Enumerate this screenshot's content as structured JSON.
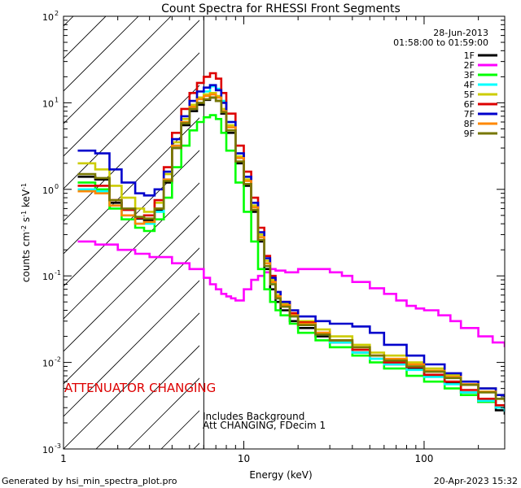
{
  "chart_data": {
    "type": "line",
    "title": "Count Spectra for RHESSI Front Segments",
    "xlabel": "Energy (keV)",
    "ylabel_html": "counts cm<tspan baseline-shift=\"super\" font-size=\"8\">-2</tspan> s<tspan baseline-shift=\"super\" font-size=\"8\">-1</tspan> keV<tspan baseline-shift=\"super\" font-size=\"8\">-1</tspan>",
    "xscale": "log",
    "yscale": "log",
    "xlim": [
      1,
      280
    ],
    "ylim": [
      0.001,
      100
    ],
    "x_ticks": [
      {
        "v": 1,
        "label": "1"
      },
      {
        "v": 10,
        "label": "10"
      },
      {
        "v": 100,
        "label": "100"
      }
    ],
    "y_ticks": [
      {
        "v": 0.001,
        "base": "10",
        "exp": "-3"
      },
      {
        "v": 0.01,
        "base": "10",
        "exp": "-2"
      },
      {
        "v": 0.1,
        "base": "10",
        "exp": "-1"
      },
      {
        "v": 1,
        "base": "10",
        "exp": "0"
      },
      {
        "v": 10,
        "base": "10",
        "exp": "1"
      },
      {
        "v": 100,
        "base": "10",
        "exp": "2"
      }
    ],
    "attenuator_edge_kev": 6,
    "legend_position": "top-right",
    "series": [
      {
        "name": "1F",
        "color": "#000000",
        "energy": [
          1.2,
          1.5,
          1.8,
          2.1,
          2.5,
          2.8,
          3.2,
          3.6,
          4.0,
          4.5,
          5.0,
          5.5,
          6.0,
          6.5,
          7.0,
          7.5,
          8.0,
          9.0,
          10.0,
          11.0,
          12.0,
          13.0,
          14.0,
          15.0,
          16.0,
          18.0,
          20.0,
          25.0,
          30.0,
          40.0,
          50.0,
          60.0,
          80.0,
          100.0,
          130.0,
          160.0,
          200.0,
          250.0,
          280.0
        ],
        "flux": [
          1.4,
          1.3,
          0.7,
          0.58,
          0.46,
          0.44,
          0.58,
          1.2,
          3.0,
          5.5,
          8.0,
          9.5,
          10.8,
          11.5,
          10.5,
          7.5,
          4.5,
          2.0,
          1.1,
          0.55,
          0.25,
          0.12,
          0.07,
          0.05,
          0.04,
          0.03,
          0.025,
          0.02,
          0.017,
          0.013,
          0.011,
          0.0095,
          0.0085,
          0.007,
          0.0058,
          0.0045,
          0.0035,
          0.0028,
          0.0025
        ]
      },
      {
        "name": "2F",
        "color": "#ff00ff",
        "energy": [
          1.2,
          1.5,
          2.0,
          2.5,
          3.0,
          4.0,
          5.0,
          6.0,
          6.5,
          7.0,
          7.5,
          8.0,
          8.5,
          9.0,
          10.0,
          11.0,
          12.0,
          13.0,
          14.0,
          15.0,
          17.0,
          20.0,
          25.0,
          30.0,
          35.0,
          40.0,
          50.0,
          60.0,
          70.0,
          80.0,
          90.0,
          100.0,
          120.0,
          140.0,
          160.0,
          200.0,
          240.0,
          280.0
        ],
        "flux": [
          0.25,
          0.23,
          0.2,
          0.18,
          0.165,
          0.14,
          0.12,
          0.095,
          0.08,
          0.07,
          0.062,
          0.058,
          0.055,
          0.052,
          0.07,
          0.09,
          0.1,
          0.11,
          0.12,
          0.115,
          0.11,
          0.12,
          0.12,
          0.11,
          0.1,
          0.085,
          0.072,
          0.062,
          0.052,
          0.045,
          0.042,
          0.04,
          0.035,
          0.03,
          0.025,
          0.02,
          0.017,
          0.015
        ]
      },
      {
        "name": "3F",
        "color": "#00ff00",
        "energy": [
          1.2,
          1.5,
          1.8,
          2.1,
          2.5,
          2.8,
          3.2,
          3.6,
          4.0,
          4.5,
          5.0,
          5.5,
          6.0,
          6.5,
          7.0,
          7.5,
          8.0,
          9.0,
          10.0,
          11.0,
          12.0,
          13.0,
          14.0,
          15.0,
          16.0,
          18.0,
          20.0,
          25.0,
          30.0,
          40.0,
          50.0,
          60.0,
          80.0,
          100.0,
          130.0,
          160.0,
          200.0,
          250.0,
          280.0
        ],
        "flux": [
          1.2,
          1.0,
          0.6,
          0.45,
          0.36,
          0.33,
          0.45,
          0.8,
          1.8,
          3.2,
          4.8,
          6.0,
          6.8,
          7.2,
          6.5,
          4.5,
          2.8,
          1.2,
          0.55,
          0.25,
          0.12,
          0.07,
          0.05,
          0.04,
          0.035,
          0.028,
          0.022,
          0.018,
          0.015,
          0.012,
          0.01,
          0.0085,
          0.007,
          0.006,
          0.005,
          0.0042,
          0.0035,
          0.003,
          0.0028
        ]
      },
      {
        "name": "4F",
        "color": "#00ffff",
        "energy": [
          1.2,
          1.5,
          1.8,
          2.1,
          2.5,
          2.8,
          3.2,
          3.6,
          4.0,
          4.5,
          5.0,
          5.5,
          6.0,
          6.5,
          7.0,
          7.5,
          8.0,
          9.0,
          10.0,
          11.0,
          12.0,
          13.0,
          14.0,
          15.0,
          16.0,
          18.0,
          20.0,
          25.0,
          30.0,
          40.0,
          50.0,
          60.0,
          80.0,
          100.0,
          130.0,
          160.0,
          200.0,
          250.0,
          280.0
        ],
        "flux": [
          1.0,
          0.95,
          0.65,
          0.5,
          0.4,
          0.4,
          0.55,
          1.3,
          3.2,
          6.0,
          9.0,
          11.5,
          13.5,
          15.5,
          14.5,
          10.5,
          6.0,
          2.6,
          1.4,
          0.7,
          0.3,
          0.14,
          0.08,
          0.055,
          0.045,
          0.034,
          0.027,
          0.021,
          0.017,
          0.013,
          0.011,
          0.0095,
          0.0082,
          0.0068,
          0.0056,
          0.0045,
          0.0036,
          0.003,
          0.0027
        ]
      },
      {
        "name": "5F",
        "color": "#cccc00",
        "energy": [
          1.2,
          1.5,
          1.8,
          2.1,
          2.5,
          2.8,
          3.2,
          3.6,
          4.0,
          4.5,
          5.0,
          5.5,
          6.0,
          6.5,
          7.0,
          7.5,
          8.0,
          9.0,
          10.0,
          11.0,
          12.0,
          13.0,
          14.0,
          15.0,
          16.0,
          18.0,
          20.0,
          25.0,
          30.0,
          40.0,
          50.0,
          60.0,
          80.0,
          100.0,
          130.0,
          160.0,
          200.0,
          250.0,
          280.0
        ],
        "flux": [
          2.0,
          1.7,
          1.1,
          0.8,
          0.6,
          0.55,
          0.7,
          1.5,
          3.5,
          6.5,
          9.5,
          11.5,
          12.5,
          13.0,
          12.0,
          8.5,
          5.5,
          2.4,
          1.3,
          0.65,
          0.3,
          0.15,
          0.09,
          0.06,
          0.048,
          0.037,
          0.03,
          0.024,
          0.02,
          0.016,
          0.013,
          0.012,
          0.01,
          0.0085,
          0.0072,
          0.006,
          0.005,
          0.0042,
          0.004
        ]
      },
      {
        "name": "6F",
        "color": "#dd0000",
        "energy": [
          1.2,
          1.5,
          1.8,
          2.1,
          2.5,
          2.8,
          3.2,
          3.6,
          4.0,
          4.5,
          5.0,
          5.5,
          6.0,
          6.5,
          7.0,
          7.5,
          8.0,
          9.0,
          10.0,
          11.0,
          12.0,
          13.0,
          14.0,
          15.0,
          16.0,
          18.0,
          20.0,
          25.0,
          30.0,
          40.0,
          50.0,
          60.0,
          80.0,
          100.0,
          130.0,
          160.0,
          200.0,
          250.0,
          280.0
        ],
        "flux": [
          1.1,
          1.1,
          0.75,
          0.58,
          0.47,
          0.5,
          0.75,
          1.8,
          4.5,
          8.5,
          13.0,
          17.0,
          20.0,
          22.0,
          19.0,
          13.0,
          7.5,
          3.2,
          1.6,
          0.8,
          0.36,
          0.17,
          0.1,
          0.065,
          0.05,
          0.037,
          0.029,
          0.022,
          0.018,
          0.014,
          0.012,
          0.01,
          0.0088,
          0.0072,
          0.006,
          0.0048,
          0.0038,
          0.0032,
          0.003
        ]
      },
      {
        "name": "7F",
        "color": "#0000cc",
        "energy": [
          1.2,
          1.5,
          1.8,
          2.1,
          2.5,
          2.8,
          3.2,
          3.6,
          4.0,
          4.5,
          5.0,
          5.5,
          6.0,
          6.5,
          7.0,
          7.5,
          8.0,
          9.0,
          10.0,
          11.0,
          12.0,
          13.0,
          14.0,
          15.0,
          16.0,
          18.0,
          20.0,
          25.0,
          30.0,
          40.0,
          50.0,
          60.0,
          80.0,
          100.0,
          130.0,
          160.0,
          200.0,
          250.0,
          280.0
        ],
        "flux": [
          2.8,
          2.6,
          1.7,
          1.2,
          0.9,
          0.85,
          1.0,
          1.6,
          3.8,
          7.0,
          10.5,
          13.5,
          15.0,
          16.0,
          14.0,
          10.0,
          6.0,
          2.6,
          1.4,
          0.7,
          0.32,
          0.16,
          0.095,
          0.065,
          0.05,
          0.04,
          0.034,
          0.03,
          0.028,
          0.026,
          0.022,
          0.016,
          0.012,
          0.0095,
          0.0075,
          0.006,
          0.005,
          0.0042,
          0.004
        ]
      },
      {
        "name": "8F",
        "color": "#ff8800",
        "energy": [
          1.2,
          1.5,
          1.8,
          2.1,
          2.5,
          2.8,
          3.2,
          3.6,
          4.0,
          4.5,
          5.0,
          5.5,
          6.0,
          6.5,
          7.0,
          7.5,
          8.0,
          9.0,
          10.0,
          11.0,
          12.0,
          13.0,
          14.0,
          15.0,
          16.0,
          18.0,
          20.0,
          25.0,
          30.0,
          40.0,
          50.0,
          60.0,
          80.0,
          100.0,
          130.0,
          160.0,
          200.0,
          250.0,
          280.0
        ],
        "flux": [
          0.95,
          0.9,
          0.65,
          0.5,
          0.4,
          0.42,
          0.6,
          1.3,
          3.2,
          6.0,
          9.0,
          11.0,
          12.0,
          12.5,
          11.5,
          8.0,
          5.2,
          2.3,
          1.25,
          0.62,
          0.28,
          0.14,
          0.085,
          0.058,
          0.046,
          0.035,
          0.028,
          0.022,
          0.018,
          0.015,
          0.012,
          0.011,
          0.0095,
          0.008,
          0.0068,
          0.0056,
          0.0046,
          0.0038,
          0.0035
        ]
      },
      {
        "name": "9F",
        "color": "#777700",
        "energy": [
          1.2,
          1.5,
          1.8,
          2.1,
          2.5,
          2.8,
          3.2,
          3.6,
          4.0,
          4.5,
          5.0,
          5.5,
          6.0,
          6.5,
          7.0,
          7.5,
          8.0,
          9.0,
          10.0,
          11.0,
          12.0,
          13.0,
          14.0,
          15.0,
          16.0,
          18.0,
          20.0,
          25.0,
          30.0,
          40.0,
          50.0,
          60.0,
          80.0,
          100.0,
          130.0,
          160.0,
          200.0,
          250.0,
          280.0
        ],
        "flux": [
          1.5,
          1.35,
          0.75,
          0.6,
          0.48,
          0.46,
          0.6,
          1.25,
          3.0,
          5.8,
          8.5,
          10.0,
          11.0,
          11.5,
          10.5,
          7.8,
          4.8,
          2.1,
          1.15,
          0.58,
          0.26,
          0.13,
          0.08,
          0.055,
          0.044,
          0.034,
          0.027,
          0.021,
          0.018,
          0.015,
          0.012,
          0.0105,
          0.009,
          0.0078,
          0.0066,
          0.0055,
          0.0045,
          0.0038,
          0.0035
        ]
      }
    ]
  },
  "annotations": {
    "date": "28-Jun-2013",
    "time_range": "01:58:00 to 01:59:00",
    "attenuator": "ATTENUATOR CHANGING",
    "background_note": "Includes Background",
    "att_note": "Att CHANGING, FDecim 1"
  },
  "footer": {
    "generated_by": "Generated by hsi_min_spectra_plot.pro",
    "timestamp": "20-Apr-2023 15:32"
  },
  "colors": {
    "attenuator_text": "#dd0000"
  }
}
